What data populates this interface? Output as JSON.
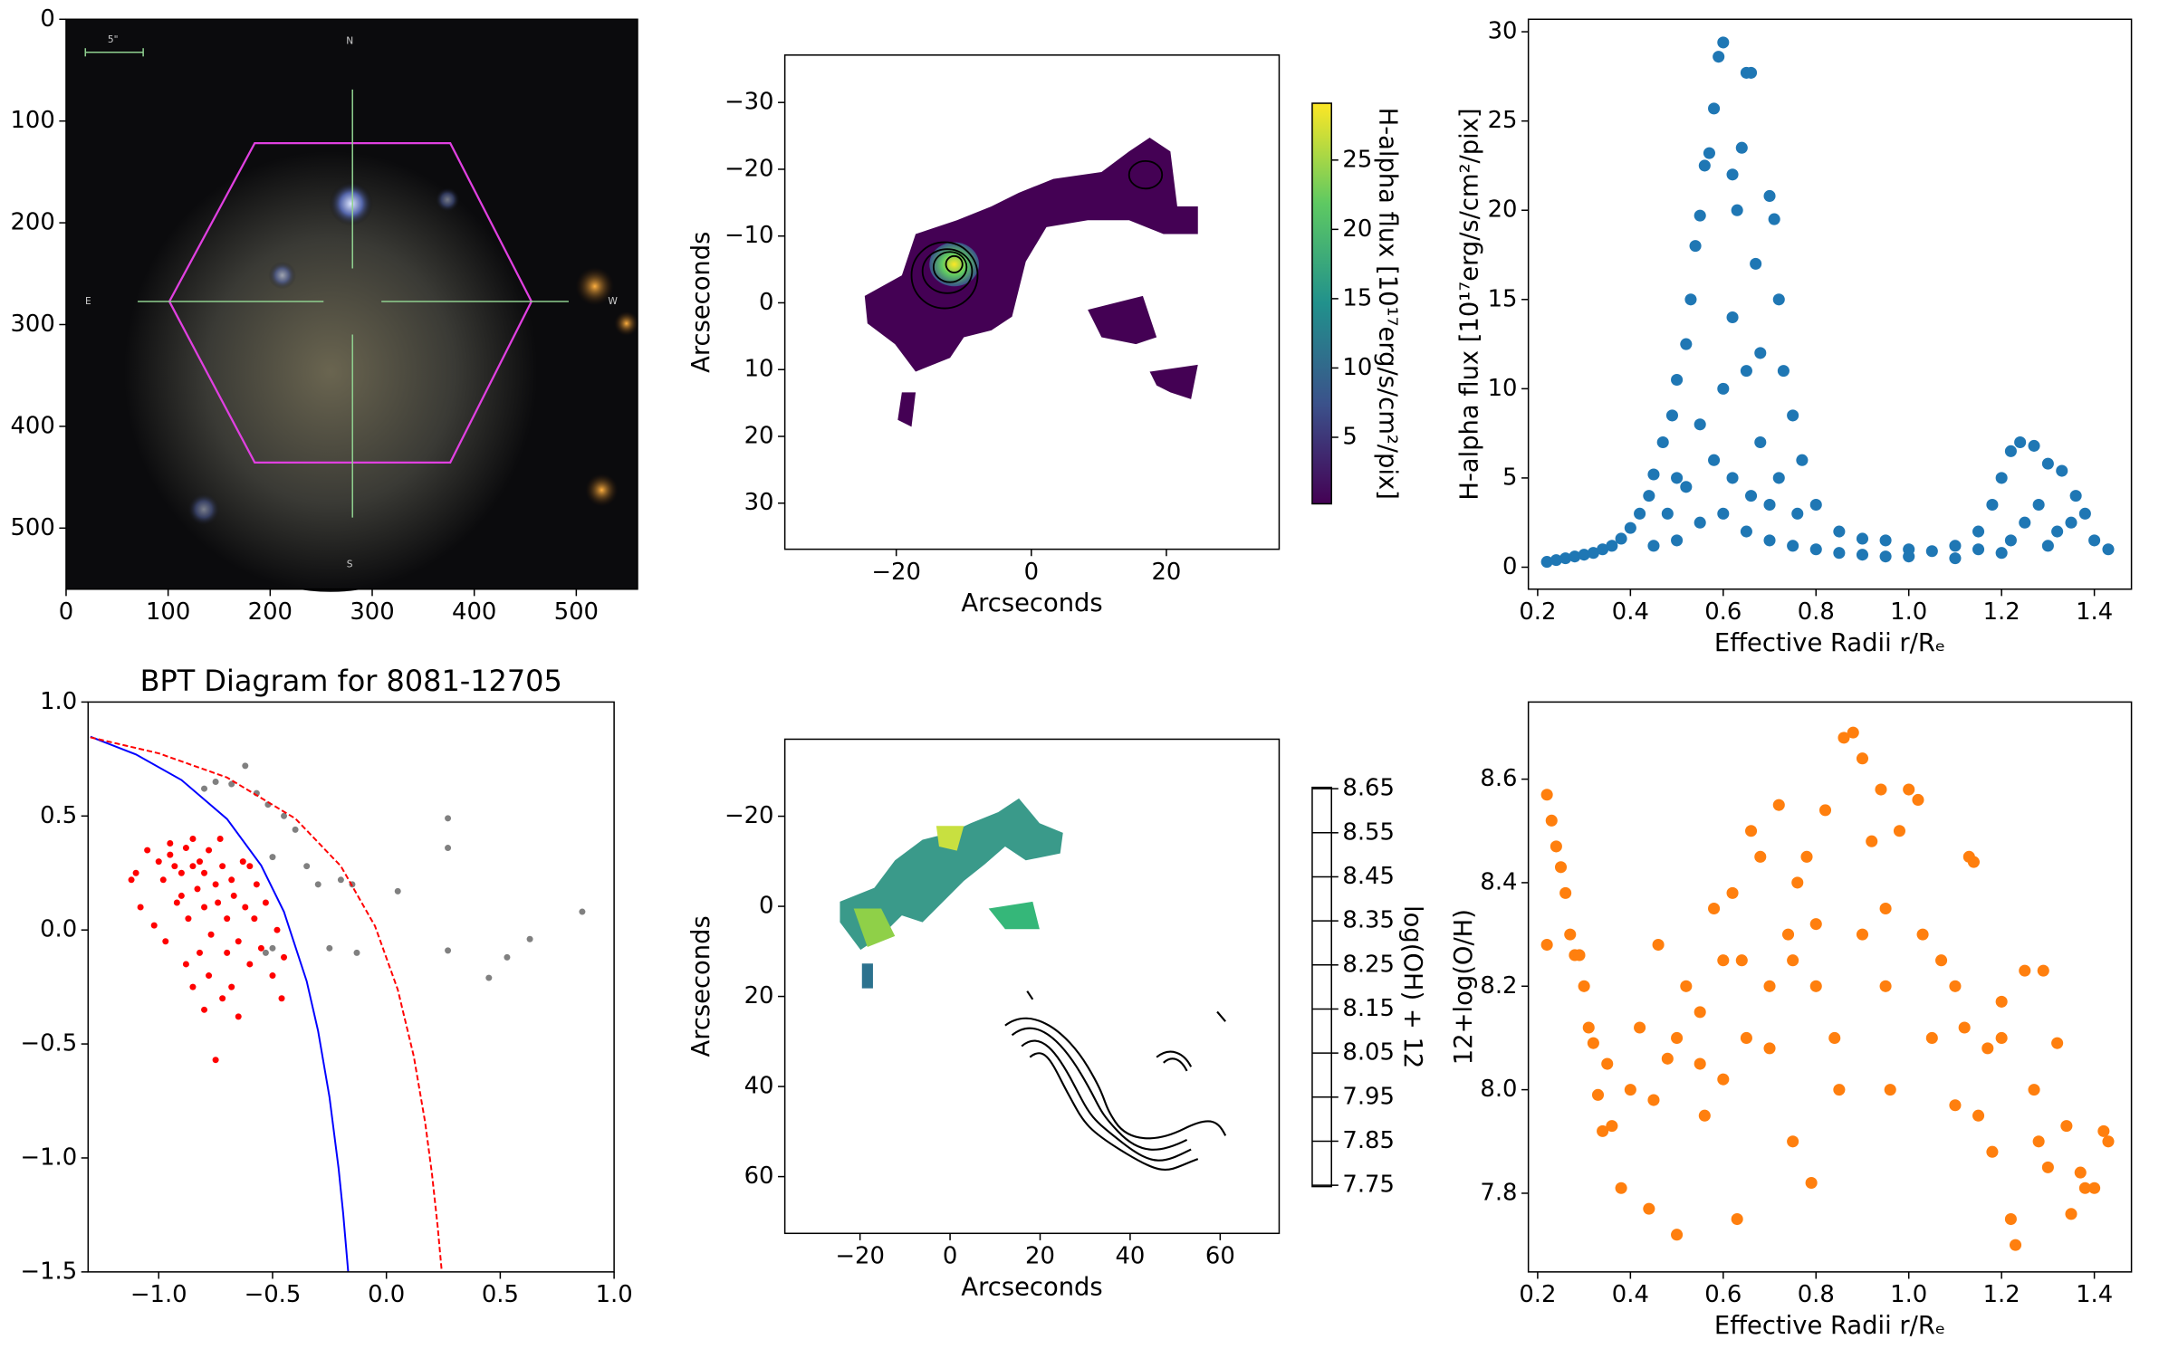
{
  "chart_data": [
    {
      "type": "image",
      "xlim": [
        0,
        560
      ],
      "ylim": [
        560,
        0
      ],
      "xticks": [
        0,
        100,
        200,
        300,
        400,
        500
      ],
      "yticks": [
        0,
        100,
        200,
        300,
        400,
        500
      ],
      "image_labels": [
        "N",
        "S",
        "E",
        "W",
        "5\""
      ]
    },
    {
      "type": "heatmap",
      "xlabel": "Arcseconds",
      "ylabel": "Arcseconds",
      "xlim": [
        -36.5,
        36.7
      ],
      "ylim": [
        36.9,
        -37.1
      ],
      "xticks": [
        {
          "value": -20,
          "label": "−20"
        },
        0,
        20
      ],
      "yticks": [
        {
          "value": -30,
          "label": "−30"
        },
        {
          "value": -20,
          "label": "−20"
        },
        {
          "value": -10,
          "label": "−10"
        },
        0,
        10,
        20,
        30
      ],
      "colorbar": {
        "label": "H-alpha flux [10¹⁷erg/s/cm²/pix]",
        "lim": [
          0.2,
          29.1
        ],
        "ticks": [
          5,
          10,
          15,
          20,
          25
        ],
        "colormap": "viridis"
      }
    },
    {
      "type": "scatter",
      "xlabel": "Effective Radii r/Rₑ",
      "ylabel": "H-alpha flux [10¹⁷erg/s/cm²/pix]",
      "color": "#1f77b4",
      "xlim": [
        0.18,
        1.48
      ],
      "ylim": [
        -1.23,
        30.7
      ],
      "xticks": [
        0.2,
        0.4,
        0.6,
        0.8,
        {
          "value": 1.0,
          "label": "1.0"
        },
        1.2,
        1.4
      ],
      "yticks": [
        0,
        5,
        10,
        15,
        20,
        25,
        30
      ],
      "x": [
        0.22,
        0.24,
        0.26,
        0.28,
        0.3,
        0.32,
        0.34,
        0.36,
        0.38,
        0.4,
        0.42,
        0.44,
        0.45,
        0.47,
        0.49,
        0.5,
        0.52,
        0.53,
        0.54,
        0.55,
        0.56,
        0.57,
        0.58,
        0.59,
        0.6,
        0.62,
        0.63,
        0.64,
        0.65,
        0.66,
        0.67,
        0.68,
        0.7,
        0.71,
        0.72,
        0.73,
        0.75,
        0.77,
        0.8,
        0.85,
        0.9,
        0.95,
        1.0,
        1.05,
        1.1,
        1.15,
        1.18,
        1.2,
        1.22,
        1.24,
        1.27,
        1.3,
        1.33,
        1.36,
        1.38,
        1.4,
        1.43,
        0.45,
        0.5,
        0.55,
        0.6,
        0.65,
        0.7,
        0.75,
        0.8,
        0.85,
        0.9,
        0.95,
        1.0,
        1.1,
        1.2,
        1.3,
        0.5,
        0.55,
        0.6,
        0.62,
        0.65,
        0.68,
        0.72,
        0.76,
        0.48,
        0.52,
        0.58,
        0.62,
        0.66,
        0.7,
        1.25,
        1.28,
        1.32,
        1.35,
        1.22,
        1.15
      ],
      "values": [
        0.3,
        0.4,
        0.5,
        0.6,
        0.7,
        0.8,
        1.0,
        1.2,
        1.6,
        2.2,
        3.0,
        4.0,
        5.2,
        7.0,
        8.5,
        10.5,
        12.5,
        15.0,
        18.0,
        19.7,
        22.5,
        23.2,
        25.7,
        28.6,
        29.4,
        22.0,
        20.0,
        23.5,
        27.7,
        27.7,
        17.0,
        12.0,
        20.8,
        19.5,
        15.0,
        11.0,
        8.5,
        6.0,
        3.5,
        2.0,
        1.6,
        1.5,
        1.0,
        0.9,
        1.2,
        2.0,
        3.5,
        5.0,
        6.5,
        7.0,
        6.8,
        5.8,
        5.4,
        4.0,
        3.0,
        1.5,
        1.0,
        1.2,
        1.5,
        2.5,
        3.0,
        2.0,
        1.5,
        1.2,
        1.0,
        0.8,
        0.7,
        0.6,
        0.6,
        0.5,
        0.8,
        1.2,
        5.0,
        8.0,
        10.0,
        14.0,
        11.0,
        7.0,
        5.0,
        3.0,
        3.0,
        4.5,
        6.0,
        5.0,
        4.0,
        3.5,
        2.5,
        3.5,
        2.0,
        2.5,
        1.5,
        1.0
      ]
    },
    {
      "type": "scatter",
      "title": "BPT Diagram for 8081-12705",
      "xlim": [
        -1.31,
        1.0
      ],
      "ylim": [
        -1.5,
        1.0
      ],
      "xticks": [
        {
          "value": -1.0,
          "label": "−1.0"
        },
        {
          "value": -0.5,
          "label": "−0.5"
        },
        {
          "value": 0.0,
          "label": "0.0"
        },
        0.5,
        {
          "value": 1.0,
          "label": "1.0"
        }
      ],
      "yticks": [
        {
          "value": -1.5,
          "label": "−1.5"
        },
        {
          "value": -1.0,
          "label": "−1.0"
        },
        {
          "value": -0.5,
          "label": "−0.5"
        },
        {
          "value": 0.0,
          "label": "0.0"
        },
        0.5,
        {
          "value": 1.0,
          "label": "1.0"
        }
      ],
      "series": [
        {
          "kind": "points",
          "color": "#ff0000",
          "x": [
            -1.05,
            -1.0,
            -0.98,
            -0.95,
            -0.93,
            -0.9,
            -0.9,
            -0.88,
            -0.87,
            -0.85,
            -0.83,
            -0.82,
            -0.8,
            -0.8,
            -0.78,
            -0.77,
            -0.75,
            -0.75,
            -0.74,
            -0.72,
            -0.7,
            -0.7,
            -0.68,
            -0.67,
            -0.65,
            -0.63,
            -0.62,
            -0.6,
            -0.58,
            -0.57,
            -0.55,
            -0.53,
            -0.5,
            -0.48,
            -0.46,
            -0.45,
            -1.1,
            -1.12,
            -1.08,
            -1.02,
            -0.97,
            -0.92,
            -0.88,
            -0.85,
            -0.82,
            -0.78,
            -0.72,
            -0.68,
            -0.65,
            -0.8,
            -0.73,
            -0.85,
            -0.95,
            -0.6
          ],
          "values": [
            0.35,
            0.3,
            0.22,
            0.33,
            0.28,
            0.25,
            0.15,
            0.36,
            0.05,
            0.28,
            0.18,
            0.3,
            0.1,
            0.25,
            0.35,
            -0.02,
            0.2,
            -0.57,
            0.12,
            0.28,
            0.05,
            -0.1,
            0.22,
            0.15,
            -0.05,
            0.3,
            0.1,
            -0.15,
            0.05,
            0.2,
            -0.08,
            0.12,
            -0.2,
            0.0,
            -0.3,
            -0.12,
            0.25,
            0.22,
            0.1,
            0.02,
            -0.05,
            0.12,
            -0.15,
            -0.25,
            -0.1,
            -0.2,
            -0.3,
            -0.25,
            -0.38,
            -0.35,
            0.4,
            0.4,
            0.38,
            0.28
          ]
        },
        {
          "kind": "points",
          "color": "#808080",
          "x": [
            -0.8,
            -0.75,
            -0.68,
            -0.62,
            -0.57,
            -0.52,
            -0.45,
            -0.4,
            -0.35,
            -0.5,
            -0.3,
            -0.2,
            -0.15,
            0.05,
            0.27,
            0.27,
            0.27,
            -0.5,
            -0.25,
            -0.13,
            0.45,
            0.53,
            0.63,
            0.86,
            -0.53
          ],
          "values": [
            0.62,
            0.65,
            0.64,
            0.72,
            0.6,
            0.55,
            0.5,
            0.44,
            0.28,
            0.32,
            0.2,
            0.22,
            0.2,
            0.17,
            0.49,
            0.36,
            -0.09,
            -0.08,
            -0.08,
            -0.1,
            -0.21,
            -0.12,
            -0.04,
            0.08,
            -0.1
          ]
        },
        {
          "kind": "line",
          "color": "#0000ff",
          "x": [
            -1.3,
            -1.1,
            -0.9,
            -0.7,
            -0.55,
            -0.45,
            -0.35,
            -0.3,
            -0.25,
            -0.21,
            -0.19,
            -0.168
          ],
          "values": [
            0.848,
            0.77,
            0.658,
            0.487,
            0.283,
            0.08,
            -0.225,
            -0.443,
            -0.733,
            -1.046,
            -1.242,
            -1.498
          ]
        },
        {
          "kind": "line",
          "color": "#ff0000",
          "dashed": true,
          "x": [
            -1.3,
            -1.0,
            -0.7,
            -0.4,
            -0.2,
            -0.05,
            0.05,
            0.12,
            0.17,
            0.2,
            0.225,
            0.243
          ],
          "values": [
            0.845,
            0.775,
            0.669,
            0.489,
            0.28,
            0.017,
            -0.262,
            -0.553,
            -0.843,
            -1.069,
            -1.3,
            -1.497
          ]
        }
      ]
    },
    {
      "type": "heatmap",
      "xlabel": "Arcseconds",
      "ylabel": "Arcseconds",
      "xlim": [
        -36.7,
        73.1
      ],
      "ylim": [
        72.6,
        -37.1
      ],
      "xticks": [
        {
          "value": -20,
          "label": "−20"
        },
        0,
        20,
        40,
        60
      ],
      "yticks": [
        {
          "value": -20,
          "label": "−20"
        },
        0,
        20,
        40,
        60
      ],
      "colorbar": {
        "label": "log(OH) + 12",
        "lim": [
          7.747,
          8.653
        ],
        "ticks": [
          7.75,
          7.85,
          7.95,
          8.05,
          8.15,
          8.25,
          8.35,
          8.45,
          8.55,
          8.65
        ]
      }
    },
    {
      "type": "scatter",
      "xlabel": "Effective Radii r/Rₑ",
      "ylabel": "12+log(O/H)",
      "color": "#ff7f0e",
      "xlim": [
        0.18,
        1.48
      ],
      "ylim": [
        7.648,
        8.749
      ],
      "xticks": [
        0.2,
        0.4,
        0.6,
        0.8,
        {
          "value": 1.0,
          "label": "1.0"
        },
        1.2,
        1.4
      ],
      "yticks": [
        7.8,
        {
          "value": 8.0,
          "label": "8.0"
        },
        8.2,
        8.4,
        8.6
      ],
      "x": [
        0.22,
        0.22,
        0.23,
        0.24,
        0.25,
        0.26,
        0.27,
        0.28,
        0.29,
        0.3,
        0.31,
        0.32,
        0.33,
        0.34,
        0.35,
        0.36,
        0.38,
        0.4,
        0.42,
        0.44,
        0.46,
        0.48,
        0.5,
        0.5,
        0.52,
        0.55,
        0.56,
        0.58,
        0.6,
        0.62,
        0.63,
        0.64,
        0.66,
        0.68,
        0.7,
        0.72,
        0.74,
        0.75,
        0.76,
        0.78,
        0.79,
        0.8,
        0.82,
        0.84,
        0.86,
        0.88,
        0.9,
        0.9,
        0.92,
        0.94,
        0.95,
        0.96,
        0.98,
        1.0,
        1.02,
        1.03,
        1.05,
        1.07,
        1.1,
        1.12,
        1.13,
        1.14,
        1.15,
        1.17,
        1.18,
        1.2,
        1.22,
        1.23,
        1.25,
        1.27,
        1.28,
        1.29,
        1.3,
        1.32,
        1.34,
        1.35,
        1.37,
        1.38,
        1.4,
        1.42,
        1.43,
        0.6,
        0.7,
        0.8,
        0.85,
        0.65,
        0.55,
        0.45,
        0.75,
        1.1,
        1.2,
        0.95
      ],
      "values": [
        8.57,
        8.28,
        8.52,
        8.47,
        8.43,
        8.38,
        8.3,
        8.26,
        8.26,
        8.2,
        8.12,
        8.09,
        7.99,
        7.92,
        8.05,
        7.93,
        7.81,
        8.0,
        8.12,
        7.77,
        8.28,
        8.06,
        7.72,
        8.1,
        8.2,
        8.15,
        7.95,
        8.35,
        8.02,
        8.38,
        7.75,
        8.25,
        8.5,
        8.45,
        8.08,
        8.55,
        8.3,
        7.9,
        8.4,
        8.45,
        7.82,
        8.2,
        8.54,
        8.1,
        8.68,
        8.69,
        8.64,
        8.3,
        8.48,
        8.58,
        8.2,
        8.0,
        8.5,
        8.58,
        8.56,
        8.3,
        8.1,
        8.25,
        7.97,
        8.12,
        8.45,
        8.44,
        7.95,
        8.08,
        7.88,
        8.17,
        7.75,
        7.7,
        8.23,
        8.0,
        7.9,
        8.23,
        7.85,
        8.09,
        7.93,
        7.76,
        7.84,
        7.81,
        7.81,
        7.92,
        7.9,
        8.25,
        8.2,
        8.32,
        8.0,
        8.1,
        8.05,
        7.98,
        8.25,
        8.2,
        8.1,
        8.35
      ]
    }
  ]
}
